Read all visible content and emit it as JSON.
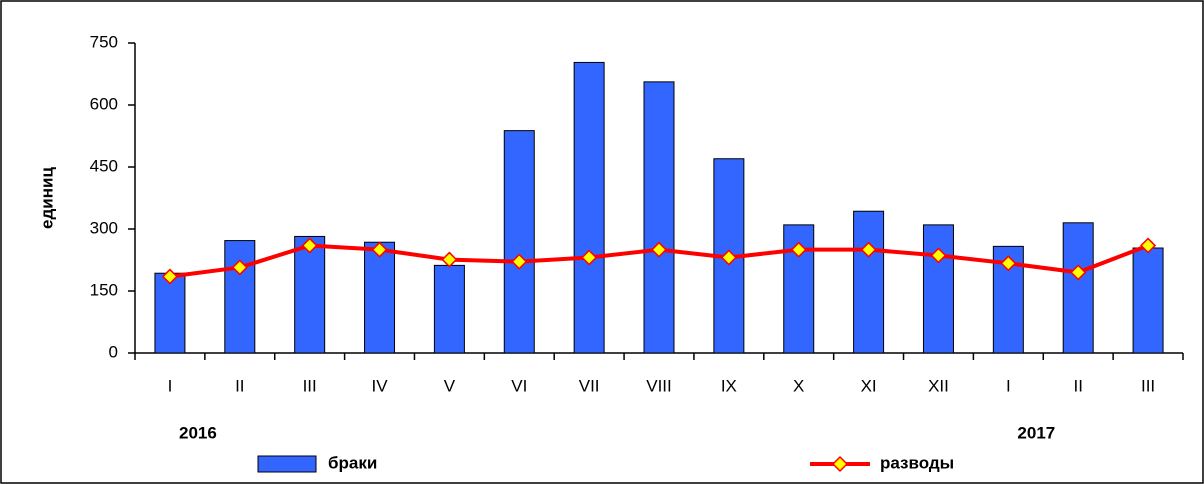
{
  "chart_data": {
    "type": "bar_line",
    "y_label": "единиц",
    "categories": [
      "I",
      "II",
      "III",
      "IV",
      "V",
      "VI",
      "VII",
      "VIII",
      "IX",
      "X",
      "XI",
      "XII",
      "I",
      "II",
      "III"
    ],
    "years": [
      "2016",
      "2017"
    ],
    "series": [
      {
        "name": "браки",
        "type": "bar",
        "color": "#3366ff",
        "values": [
          193,
          272,
          282,
          268,
          212,
          538,
          703,
          656,
          470,
          310,
          343,
          310,
          258,
          315,
          254
        ]
      },
      {
        "name": "разводы",
        "type": "line",
        "color": "#ff0000",
        "marker_color": "#ffff00",
        "values": [
          185,
          207,
          260,
          250,
          226,
          221,
          231,
          250,
          231,
          250,
          250,
          236,
          217,
          195,
          260
        ]
      }
    ],
    "ylim": [
      0,
      750
    ],
    "yticks": [
      0,
      150,
      300,
      450,
      600,
      750
    ],
    "grid": false
  }
}
